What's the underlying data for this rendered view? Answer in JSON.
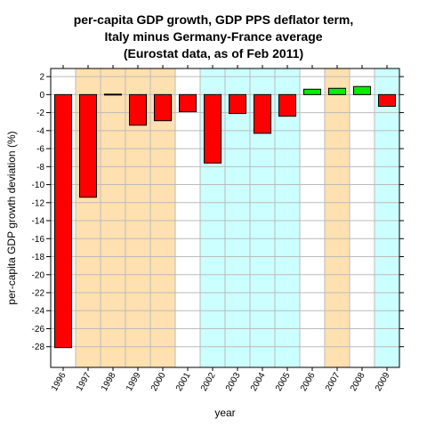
{
  "chart_data": {
    "type": "bar",
    "title_lines": [
      "per-capita GDP growth, GDP PPS deflator term,",
      "Italy minus Germany-France average",
      "(Eurostat data, as of Feb 2011)"
    ],
    "xlabel": "year",
    "ylabel": "per-capita GDP growth deviation (%)",
    "ylim": [
      -30.3,
      2.9
    ],
    "yticks": [
      2,
      0,
      -2,
      -4,
      -6,
      -8,
      -10,
      -12,
      -14,
      -16,
      -18,
      -20,
      -22,
      -24,
      -26,
      -28
    ],
    "categories": [
      "1996",
      "1997",
      "1998",
      "1999",
      "2000",
      "2001",
      "2002",
      "2003",
      "2004",
      "2005",
      "2006",
      "2007",
      "2008",
      "2009"
    ],
    "values": [
      -28.1,
      -11.4,
      0.05,
      -3.4,
      -2.9,
      -1.9,
      -7.6,
      -2.1,
      -4.3,
      -2.4,
      0.6,
      0.7,
      0.9,
      -1.3
    ],
    "bar_colors": [
      "#ff0000",
      "#ff0000",
      "#ff0000",
      "#ff0000",
      "#ff0000",
      "#ff0000",
      "#ff0000",
      "#ff0000",
      "#ff0000",
      "#ff0000",
      "#00ee00",
      "#00ee00",
      "#00ee00",
      "#ff0000"
    ],
    "background_bands": [
      {
        "from": "1997",
        "to": "2000",
        "color": "#ffe0b0"
      },
      {
        "from": "2002",
        "to": "2005",
        "color": "#ccffff"
      },
      {
        "from": "2007",
        "to": "2007",
        "color": "#ffe0b0"
      },
      {
        "from": "2009",
        "to": "2009",
        "color": "#ccffff"
      }
    ],
    "grid": true,
    "grid_color": "#bbbbbb",
    "legend": "none"
  }
}
